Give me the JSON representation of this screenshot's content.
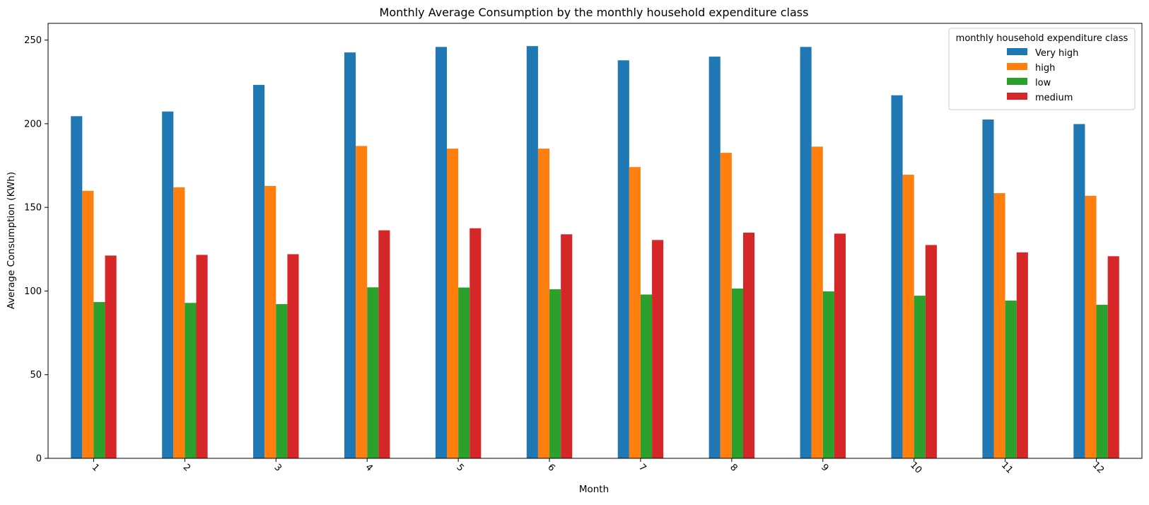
{
  "chart_data": {
    "type": "bar",
    "title": "Monthly Average Consumption by the monthly household expenditure class",
    "xlabel": "Month",
    "ylabel": "Average Consumption (KWh)",
    "categories": [
      "1",
      "2",
      "3",
      "4",
      "5",
      "6",
      "7",
      "8",
      "9",
      "10",
      "11",
      "12"
    ],
    "ylim": [
      0,
      260
    ],
    "yticks": [
      0,
      50,
      100,
      150,
      200,
      250
    ],
    "xtick_rotation": 45,
    "grid": false,
    "legend": {
      "title": "monthly household expenditure class",
      "placement": "top-right"
    },
    "series": [
      {
        "name": "Very high",
        "color": "#1f77b4",
        "values": [
          204.5,
          207.3,
          223.2,
          242.6,
          245.9,
          246.4,
          237.9,
          240.1,
          245.9,
          217.0,
          202.5,
          199.8
        ]
      },
      {
        "name": "high",
        "color": "#ff7f0e",
        "values": [
          159.9,
          162.0,
          162.8,
          186.7,
          185.1,
          185.1,
          174.1,
          182.6,
          186.3,
          169.5,
          158.5,
          156.9
        ]
      },
      {
        "name": "low",
        "color": "#2ca02c",
        "values": [
          93.4,
          92.9,
          92.2,
          102.2,
          102.1,
          101.1,
          97.9,
          101.5,
          99.8,
          97.2,
          94.3,
          91.8
        ]
      },
      {
        "name": "medium",
        "color": "#d62728",
        "values": [
          121.2,
          121.6,
          122.0,
          136.3,
          137.5,
          133.9,
          130.5,
          134.9,
          134.3,
          127.5,
          123.1,
          120.8
        ]
      }
    ]
  }
}
